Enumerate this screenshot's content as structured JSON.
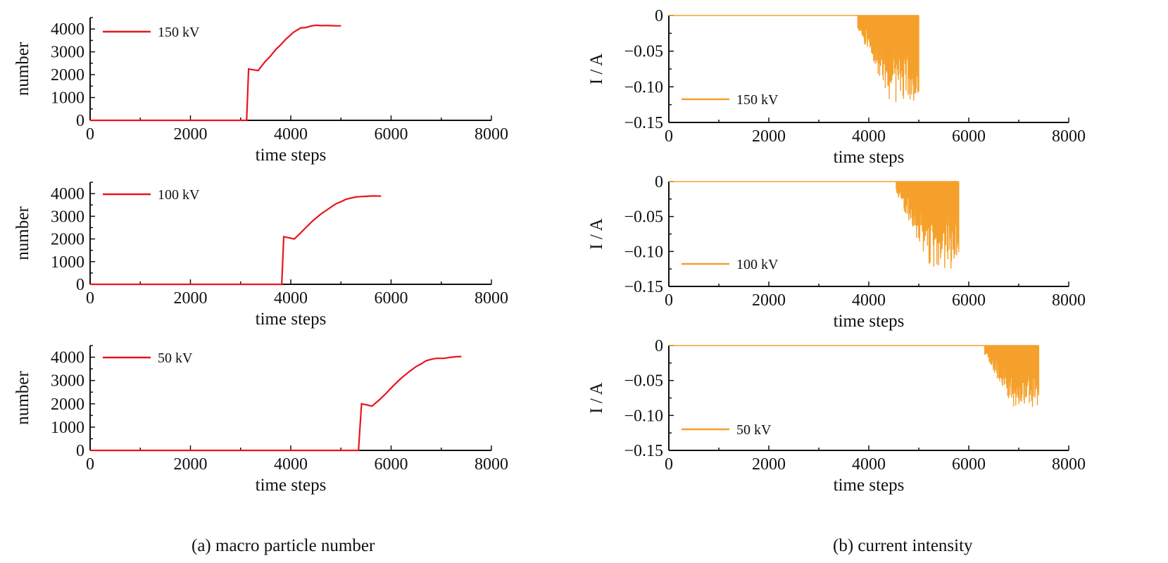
{
  "captions": {
    "a": "(a) macro particle number",
    "b": "(b) current intensity"
  },
  "colors": {
    "number_series": "#e8151b",
    "current_series": "#f5a02a",
    "axis": "#111111"
  },
  "chart_data": [
    {
      "id": "number-150kv",
      "type": "line",
      "xlabel": "time steps",
      "ylabel": "number",
      "xlim": [
        0,
        8000
      ],
      "ylim": [
        0,
        4500
      ],
      "xticks": [
        0,
        2000,
        4000,
        6000,
        8000
      ],
      "yticks": [
        0,
        1000,
        2000,
        3000,
        4000
      ],
      "legend": "top-left",
      "series": [
        {
          "name": "150 kV",
          "x": [
            0,
            3120,
            3160,
            3350,
            3500,
            3700,
            3900,
            4050,
            4200,
            4400,
            4600,
            4800,
            5000
          ],
          "y": [
            0,
            0,
            2250,
            2180,
            2600,
            3100,
            3550,
            3850,
            4050,
            4130,
            4150,
            4150,
            4140
          ]
        }
      ]
    },
    {
      "id": "number-100kv",
      "type": "line",
      "xlabel": "time steps",
      "ylabel": "number",
      "xlim": [
        0,
        8000
      ],
      "ylim": [
        0,
        4500
      ],
      "xticks": [
        0,
        2000,
        4000,
        6000,
        8000
      ],
      "yticks": [
        0,
        1000,
        2000,
        3000,
        4000
      ],
      "legend": "top-left",
      "series": [
        {
          "name": "100 kV",
          "x": [
            0,
            3820,
            3860,
            4070,
            4300,
            4600,
            4900,
            5100,
            5300,
            5500,
            5800
          ],
          "y": [
            0,
            0,
            2100,
            2000,
            2500,
            3100,
            3550,
            3750,
            3850,
            3880,
            3890
          ]
        }
      ]
    },
    {
      "id": "number-50kv",
      "type": "line",
      "xlabel": "time steps",
      "ylabel": "number",
      "xlim": [
        0,
        8000
      ],
      "ylim": [
        0,
        4500
      ],
      "xticks": [
        0,
        2000,
        4000,
        6000,
        8000
      ],
      "yticks": [
        0,
        1000,
        2000,
        3000,
        4000
      ],
      "legend": "top-left",
      "series": [
        {
          "name": "50 kV",
          "x": [
            0,
            5350,
            5410,
            5620,
            5900,
            6200,
            6500,
            6700,
            6900,
            7200,
            7400
          ],
          "y": [
            0,
            0,
            2000,
            1900,
            2450,
            3100,
            3600,
            3850,
            3950,
            4000,
            4030
          ]
        }
      ]
    },
    {
      "id": "current-150kv",
      "type": "line",
      "xlabel": "time steps",
      "ylabel": "I / A",
      "xlim": [
        0,
        8000
      ],
      "ylim": [
        -0.15,
        0
      ],
      "xticks": [
        0,
        2000,
        4000,
        6000,
        8000
      ],
      "yticks": [
        0,
        -0.05,
        -0.1,
        -0.15
      ],
      "ytick_labels": [
        "0",
        "−0.05",
        "−0.10",
        "−0.15"
      ],
      "legend": "bottom-left",
      "series": [
        {
          "name": "150 kV",
          "x": [
            0,
            3780,
            5000
          ],
          "y": [
            0,
            0,
            0
          ],
          "spike_range": [
            3780,
            5000
          ],
          "spike_min": -0.125
        }
      ]
    },
    {
      "id": "current-100kv",
      "type": "line",
      "xlabel": "time steps",
      "ylabel": "I / A",
      "xlim": [
        0,
        8000
      ],
      "ylim": [
        -0.15,
        0
      ],
      "xticks": [
        0,
        2000,
        4000,
        6000,
        8000
      ],
      "yticks": [
        0,
        -0.05,
        -0.1,
        -0.15
      ],
      "ytick_labels": [
        "0",
        "−0.05",
        "−0.10",
        "−0.15"
      ],
      "legend": "bottom-left",
      "series": [
        {
          "name": "100 kV",
          "x": [
            0,
            4550,
            5800
          ],
          "y": [
            0,
            0,
            0
          ],
          "spike_range": [
            4550,
            5800
          ],
          "spike_min": -0.125
        }
      ]
    },
    {
      "id": "current-50kv",
      "type": "line",
      "xlabel": "time steps",
      "ylabel": "I / A",
      "xlim": [
        0,
        8000
      ],
      "ylim": [
        -0.15,
        0
      ],
      "xticks": [
        0,
        2000,
        4000,
        6000,
        8000
      ],
      "yticks": [
        0,
        -0.05,
        -0.1,
        -0.15
      ],
      "ytick_labels": [
        "0",
        "−0.05",
        "−0.10",
        "−0.15"
      ],
      "legend": "bottom-left",
      "series": [
        {
          "name": "50 kV",
          "x": [
            0,
            6320,
            7400
          ],
          "y": [
            0,
            0,
            0
          ],
          "spike_range": [
            6320,
            7400
          ],
          "spike_min": -0.093
        }
      ]
    }
  ]
}
